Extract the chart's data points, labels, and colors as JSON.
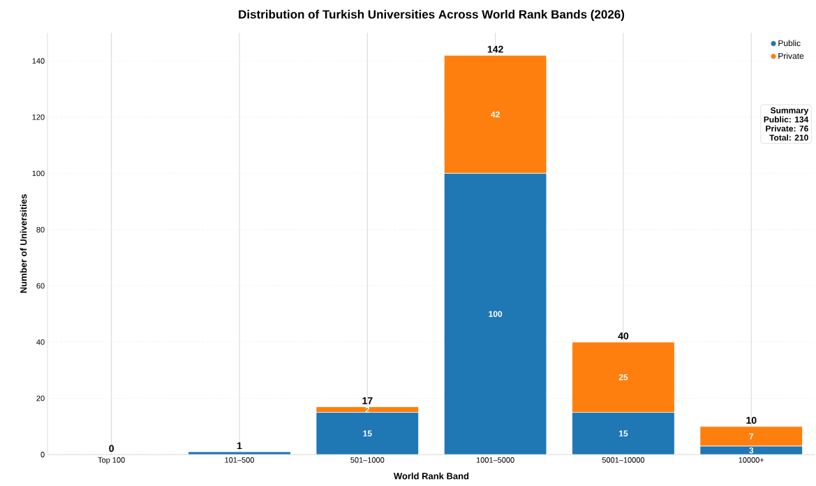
{
  "chart_data": {
    "type": "bar",
    "stacked": true,
    "title": "Distribution of Turkish Universities Across World Rank Bands (2026)",
    "xlabel": "World Rank Band",
    "ylabel": "Number of Universities",
    "categories": [
      "Top 100",
      "101–500",
      "501–1000",
      "1001–5000",
      "5001–10000",
      "10000+"
    ],
    "series": [
      {
        "name": "Public",
        "color": "#1f77b4",
        "values": [
          0,
          1,
          15,
          100,
          15,
          3
        ],
        "value_labels": [
          null,
          null,
          "15",
          "100",
          "15",
          "3"
        ]
      },
      {
        "name": "Private",
        "color": "#ff7f0e",
        "values": [
          0,
          0,
          2,
          42,
          25,
          7
        ],
        "value_labels": [
          null,
          null,
          "2",
          "42",
          "25",
          "7"
        ]
      }
    ],
    "totals": [
      "0",
      "1",
      "17",
      "142",
      "40",
      "10"
    ],
    "annotations": [
      "Summary",
      "Public: 134",
      "Private: 76",
      "Total: 210"
    ],
    "ylim": [
      0,
      150
    ],
    "yticks": [
      0,
      20,
      40,
      60,
      80,
      100,
      120,
      140
    ],
    "grid": true,
    "legend": "top right"
  }
}
